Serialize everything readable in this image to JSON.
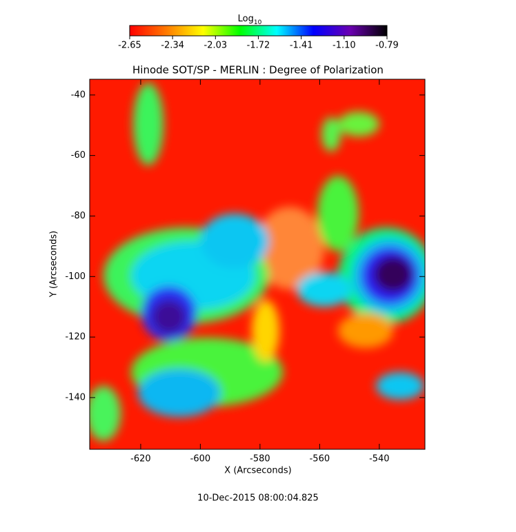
{
  "chart_data": {
    "type": "image",
    "title": "Hinode SOT/SP - MERLIN : Degree of Polarization",
    "x_label": "X (Arcseconds)",
    "y_label": "Y (Arcseconds)",
    "xlim": [
      -637.1,
      -524.7
    ],
    "xticks": [
      -620,
      -600,
      -580,
      -560,
      -540
    ],
    "ylim": [
      -157.1,
      -34.8
    ],
    "yticks": [
      -140,
      -120,
      -100,
      -80,
      -60,
      -40
    ],
    "colorbar_label": "Log",
    "colorbar_label_sub": "10",
    "clim": [
      -2.65,
      -0.79
    ],
    "cticks": [
      -2.65,
      -2.34,
      -2.03,
      -1.72,
      -1.41,
      {
        "value": -1.1,
        "label": "-1.10"
      },
      -0.79
    ],
    "colormap": [
      "#ff0000",
      "#ff7a00",
      "#ffff00",
      "#00ff00",
      "#00ffff",
      "#0000ff",
      "#6a00b0",
      "#000000"
    ],
    "footer": "10-Dec-2015 08:00:04.825"
  }
}
